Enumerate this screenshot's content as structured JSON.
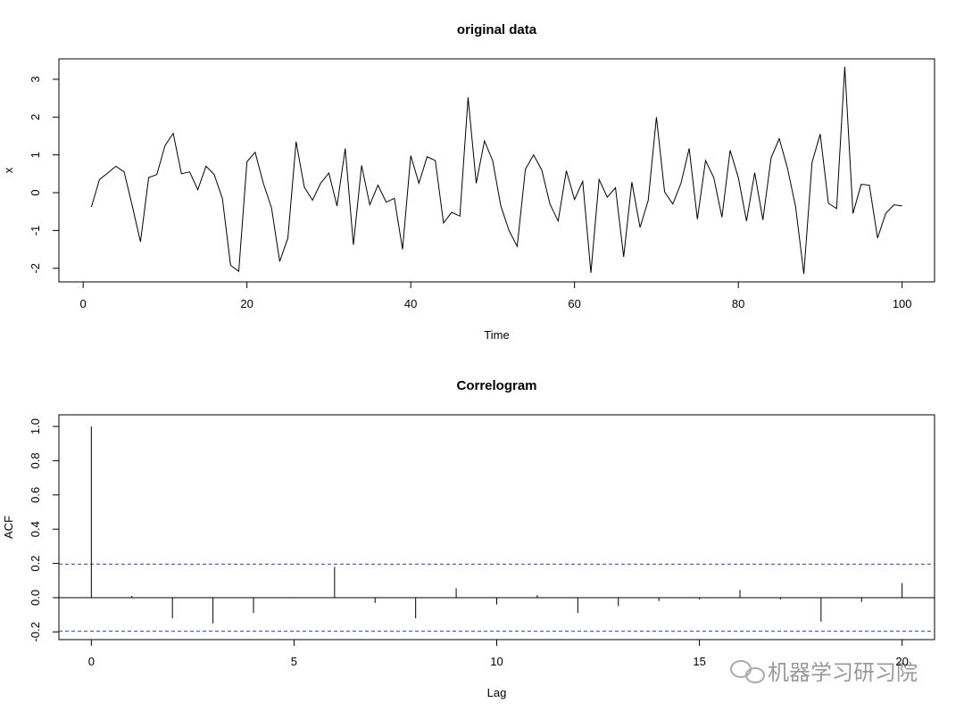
{
  "chart_data": [
    {
      "type": "line",
      "title": "original data",
      "xlabel": "Time",
      "ylabel": "x",
      "color": "#000000",
      "x": [
        1,
        2,
        3,
        4,
        5,
        6,
        7,
        8,
        9,
        10,
        11,
        12,
        13,
        14,
        15,
        16,
        17,
        18,
        19,
        20,
        21,
        22,
        23,
        24,
        25,
        26,
        27,
        28,
        29,
        30,
        31,
        32,
        33,
        34,
        35,
        36,
        37,
        38,
        39,
        40,
        41,
        42,
        43,
        44,
        45,
        46,
        47,
        48,
        49,
        50,
        51,
        52,
        53,
        54,
        55,
        56,
        57,
        58,
        59,
        60,
        61,
        62,
        63,
        64,
        65,
        66,
        67,
        68,
        69,
        70,
        71,
        72,
        73,
        74,
        75,
        76,
        77,
        78,
        79,
        80,
        81,
        82,
        83,
        84,
        85,
        86,
        87,
        88,
        89,
        90,
        91,
        92,
        93,
        94,
        95,
        96,
        97,
        98,
        99,
        100
      ],
      "values": [
        -0.38,
        0.35,
        0.52,
        0.7,
        0.55,
        -0.35,
        -1.3,
        0.4,
        0.48,
        1.25,
        1.57,
        0.5,
        0.55,
        0.08,
        0.7,
        0.48,
        -0.15,
        -1.92,
        -2.08,
        0.82,
        1.07,
        0.25,
        -0.4,
        -1.82,
        -1.2,
        1.35,
        0.15,
        -0.2,
        0.25,
        0.52,
        -0.35,
        1.17,
        -1.38,
        0.72,
        -0.32,
        0.2,
        -0.25,
        -0.15,
        -1.5,
        0.98,
        0.25,
        0.95,
        0.85,
        -0.8,
        -0.52,
        -0.62,
        2.52,
        0.25,
        1.37,
        0.85,
        -0.35,
        -1.0,
        -1.42,
        0.62,
        1.0,
        0.6,
        -0.3,
        -0.75,
        0.58,
        -0.18,
        0.3,
        -2.12,
        0.35,
        -0.12,
        0.13,
        -1.7,
        0.28,
        -0.92,
        -0.2,
        2.0,
        0.02,
        -0.3,
        0.25,
        1.17,
        -0.7,
        0.85,
        0.4,
        -0.65,
        1.12,
        0.4,
        -0.75,
        0.53,
        -0.72,
        0.92,
        1.43,
        0.65,
        -0.38,
        -2.15,
        0.8,
        1.55,
        -0.28,
        -0.42,
        3.33,
        -0.55,
        0.22,
        0.2,
        -1.2,
        -0.55,
        -0.32,
        -0.35
      ],
      "xlim": [
        -2.96,
        103.96
      ],
      "xticks": [
        0,
        20,
        40,
        60,
        80,
        100
      ],
      "ylim": [
        -2.36,
        3.54
      ],
      "yticks": [
        -2,
        -1,
        0,
        1,
        2,
        3
      ]
    },
    {
      "type": "stem",
      "title": "Correlogram",
      "xlabel": "Lag",
      "ylabel": "ACF",
      "color": "#000000",
      "x": [
        0,
        1,
        2,
        3,
        4,
        5,
        6,
        7,
        8,
        9,
        10,
        11,
        12,
        13,
        14,
        15,
        16,
        17,
        18,
        19,
        20
      ],
      "values": [
        1.0,
        0.01,
        -0.12,
        -0.15,
        -0.09,
        0.003,
        0.18,
        -0.03,
        -0.12,
        0.055,
        -0.04,
        0.015,
        -0.09,
        -0.05,
        -0.02,
        -0.01,
        0.045,
        -0.01,
        -0.14,
        -0.025,
        0.085
      ],
      "ci": [
        0.196,
        -0.196
      ],
      "ci_color": "#3333ff",
      "xlim": [
        -0.8,
        20.8
      ],
      "xticks": [
        0,
        5,
        10,
        15,
        20
      ],
      "ylim": [
        -0.245,
        1.068
      ],
      "yticks": [
        -0.2,
        {
          "value": 0,
          "label": "0.0"
        },
        0.2,
        0.4,
        0.6,
        0.8,
        {
          "value": 1,
          "label": "1.0"
        }
      ]
    }
  ],
  "watermark": "机器学习研习院"
}
